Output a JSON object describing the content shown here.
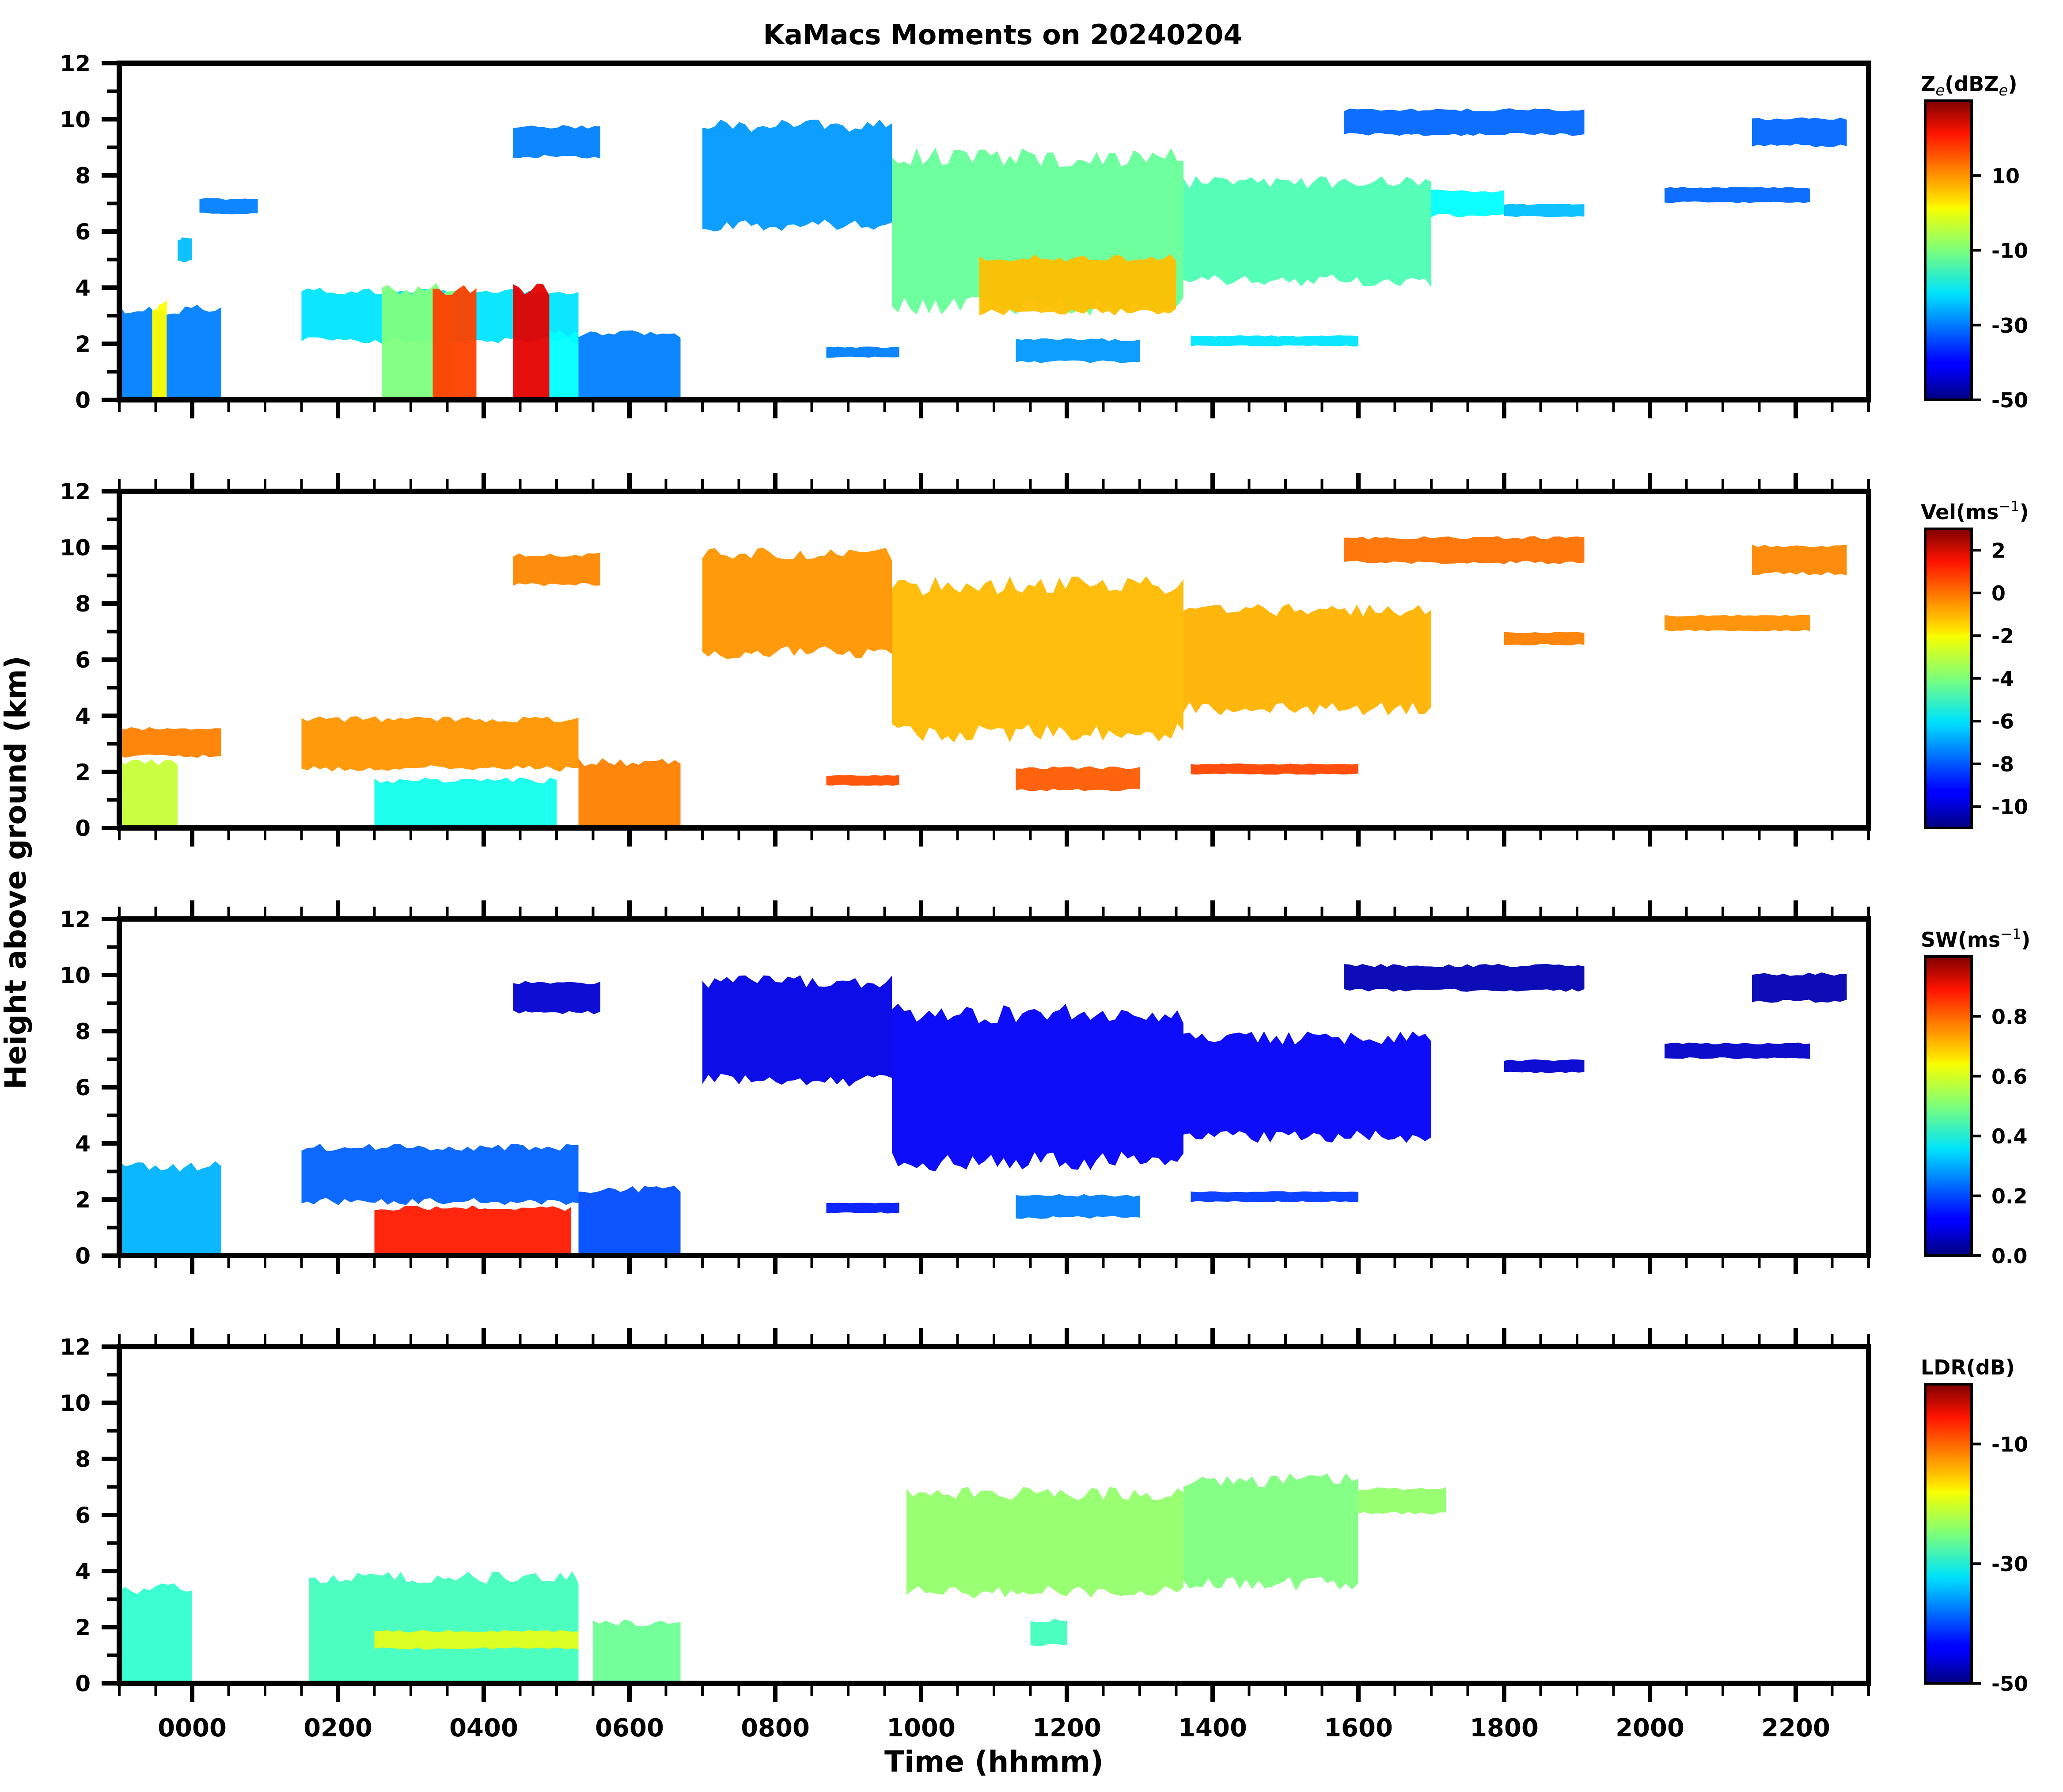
{
  "chart_data": {
    "type": "heatmap",
    "title": "KaMacs Moments on 20240204",
    "xlabel": "Time (hhmm)",
    "ylabel": "Height above ground (km)",
    "xlim": [
      -1,
      23
    ],
    "x_major_ticks": [
      0,
      2,
      4,
      6,
      8,
      10,
      12,
      14,
      16,
      18,
      20,
      22
    ],
    "x_tick_labels": [
      "0000",
      "0200",
      "0400",
      "0600",
      "0800",
      "1000",
      "1200",
      "1400",
      "1600",
      "1800",
      "2000",
      "2200"
    ],
    "x_minor_step_hours": 0.5,
    "ylim": [
      0,
      12
    ],
    "y_major_ticks": [
      0,
      2,
      4,
      6,
      8,
      10,
      12
    ],
    "y_tick_labels": [
      "0",
      "2",
      "4",
      "6",
      "8",
      "10",
      "12"
    ],
    "grid": false,
    "colormap": "jet",
    "panels": [
      {
        "name": "reflectivity",
        "colorbar_label": "Ze(dBZe)",
        "colorbar_label_main": "Z",
        "colorbar_label_sub": "e",
        "colorbar_label_mid": "(dBZ",
        "colorbar_label_sub2": "e",
        "colorbar_label_end": ")",
        "vmin": -50,
        "vmax": 30,
        "cb_ticks": [
          10,
          -10,
          -30,
          -50
        ],
        "cb_tick_labels": [
          "10",
          "-10",
          "-30",
          "-50"
        ],
        "regions": [
          {
            "t0": -1.0,
            "t1": 0.4,
            "z0": 0.0,
            "z1": 3.4,
            "value": -30
          },
          {
            "t0": -0.55,
            "t1": -0.35,
            "z0": 0.0,
            "z1": 3.6,
            "value": 0
          },
          {
            "t0": -0.2,
            "t1": 0.0,
            "z0": 4.9,
            "z1": 5.8,
            "value": -25
          },
          {
            "t0": 0.1,
            "t1": 0.9,
            "z0": 6.6,
            "z1": 7.2,
            "value": -30
          },
          {
            "t0": 1.5,
            "t1": 5.3,
            "z0": 2.0,
            "z1": 4.0,
            "value": -22
          },
          {
            "t0": 2.6,
            "t1": 3.6,
            "z0": 0.0,
            "z1": 4.2,
            "value": -10
          },
          {
            "t0": 3.3,
            "t1": 3.9,
            "z0": 0.0,
            "z1": 4.1,
            "value": 15
          },
          {
            "t0": 4.4,
            "t1": 4.9,
            "z0": 0.0,
            "z1": 4.2,
            "value": 22
          },
          {
            "t0": 4.9,
            "t1": 5.3,
            "z0": 0.0,
            "z1": 2.5,
            "value": -20
          },
          {
            "t0": 5.3,
            "t1": 6.7,
            "z0": 0.0,
            "z1": 2.5,
            "value": -30
          },
          {
            "t0": 4.4,
            "t1": 5.6,
            "z0": 8.6,
            "z1": 9.8,
            "value": -30
          },
          {
            "t0": 7.0,
            "t1": 9.6,
            "z0": 6.0,
            "z1": 10.0,
            "value": -28
          },
          {
            "t0": 9.6,
            "t1": 13.6,
            "z0": 3.0,
            "z1": 9.0,
            "value": -12
          },
          {
            "t0": 10.8,
            "t1": 13.5,
            "z0": 3.0,
            "z1": 5.2,
            "value": 5
          },
          {
            "t0": 13.6,
            "t1": 17.0,
            "z0": 4.0,
            "z1": 8.0,
            "value": -14
          },
          {
            "t0": 17.0,
            "t1": 18.0,
            "z0": 6.5,
            "z1": 7.5,
            "value": -20
          },
          {
            "t0": 15.8,
            "t1": 19.1,
            "z0": 9.4,
            "z1": 10.4,
            "value": -32
          },
          {
            "t0": 18.0,
            "t1": 19.1,
            "z0": 6.5,
            "z1": 7.0,
            "value": -25
          },
          {
            "t0": 20.2,
            "t1": 22.2,
            "z0": 7.0,
            "z1": 7.6,
            "value": -32
          },
          {
            "t0": 21.4,
            "t1": 22.7,
            "z0": 9.0,
            "z1": 10.1,
            "value": -32
          },
          {
            "t0": 8.7,
            "t1": 9.7,
            "z0": 1.5,
            "z1": 1.9,
            "value": -30
          },
          {
            "t0": 11.3,
            "t1": 13.0,
            "z0": 1.3,
            "z1": 2.2,
            "value": -28
          },
          {
            "t0": 13.7,
            "t1": 16.0,
            "z0": 1.9,
            "z1": 2.3,
            "value": -22
          }
        ]
      },
      {
        "name": "velocity",
        "colorbar_label": "Vel(ms^-1)",
        "colorbar_label_main": "Vel(ms",
        "colorbar_label_sup": "−1",
        "colorbar_label_end": ")",
        "vmin": -11,
        "vmax": 3,
        "cb_ticks": [
          2,
          0,
          -2,
          -4,
          -6,
          -8,
          -10
        ],
        "cb_tick_labels": [
          "2",
          "0",
          "-2",
          "-4",
          "-6",
          "-8",
          "-10"
        ],
        "regions": [
          {
            "t0": -1.0,
            "t1": 0.4,
            "z0": 2.5,
            "z1": 3.6,
            "value": -0.5
          },
          {
            "t0": -1.0,
            "t1": -0.2,
            "z0": 0.0,
            "z1": 2.5,
            "value": -3
          },
          {
            "t0": 1.5,
            "t1": 5.3,
            "z0": 2.0,
            "z1": 4.0,
            "value": -0.8
          },
          {
            "t0": 2.5,
            "t1": 5.0,
            "z0": 0.0,
            "z1": 1.8,
            "value": -5.5
          },
          {
            "t0": 5.3,
            "t1": 6.7,
            "z0": 0.0,
            "z1": 2.5,
            "value": -0.5
          },
          {
            "t0": 4.4,
            "t1": 5.6,
            "z0": 8.6,
            "z1": 9.8,
            "value": -0.6
          },
          {
            "t0": 7.0,
            "t1": 9.6,
            "z0": 6.0,
            "z1": 10.0,
            "value": -0.8
          },
          {
            "t0": 9.6,
            "t1": 13.6,
            "z0": 3.0,
            "z1": 9.0,
            "value": -1.3
          },
          {
            "t0": 13.6,
            "t1": 17.0,
            "z0": 4.0,
            "z1": 8.0,
            "value": -1.2
          },
          {
            "t0": 15.8,
            "t1": 19.1,
            "z0": 9.4,
            "z1": 10.4,
            "value": -0.3
          },
          {
            "t0": 18.0,
            "t1": 19.1,
            "z0": 6.5,
            "z1": 7.0,
            "value": -0.5
          },
          {
            "t0": 20.2,
            "t1": 22.2,
            "z0": 7.0,
            "z1": 7.6,
            "value": -0.7
          },
          {
            "t0": 21.4,
            "t1": 22.7,
            "z0": 9.0,
            "z1": 10.1,
            "value": -0.6
          },
          {
            "t0": 8.7,
            "t1": 9.7,
            "z0": 1.5,
            "z1": 1.9,
            "value": 0.2
          },
          {
            "t0": 11.3,
            "t1": 13.0,
            "z0": 1.3,
            "z1": 2.2,
            "value": 0.0
          },
          {
            "t0": 13.7,
            "t1": 16.0,
            "z0": 1.9,
            "z1": 2.3,
            "value": 0.3
          }
        ]
      },
      {
        "name": "spectrum_width",
        "colorbar_label": "SW(ms^-1)",
        "colorbar_label_main": "SW(ms",
        "colorbar_label_sup": "−1",
        "colorbar_label_end": ")",
        "vmin": 0.0,
        "vmax": 1.0,
        "cb_ticks": [
          0.8,
          0.6,
          0.4,
          0.2,
          0.0
        ],
        "cb_tick_labels": [
          "0.8",
          "0.6",
          "0.4",
          "0.2",
          "0.0"
        ],
        "regions": [
          {
            "t0": -1.0,
            "t1": 0.4,
            "z0": 0.0,
            "z1": 3.4,
            "value": 0.3
          },
          {
            "t0": 1.5,
            "t1": 5.3,
            "z0": 1.8,
            "z1": 4.0,
            "value": 0.22
          },
          {
            "t0": 2.5,
            "t1": 5.2,
            "z0": 0.0,
            "z1": 1.8,
            "value": 0.85
          },
          {
            "t0": 5.3,
            "t1": 6.7,
            "z0": 0.0,
            "z1": 2.5,
            "value": 0.2
          },
          {
            "t0": 4.4,
            "t1": 5.6,
            "z0": 8.6,
            "z1": 9.8,
            "value": 0.08
          },
          {
            "t0": 7.0,
            "t1": 9.6,
            "z0": 6.0,
            "z1": 10.0,
            "value": 0.1
          },
          {
            "t0": 9.6,
            "t1": 13.6,
            "z0": 3.0,
            "z1": 9.0,
            "value": 0.12
          },
          {
            "t0": 13.6,
            "t1": 17.0,
            "z0": 4.0,
            "z1": 8.0,
            "value": 0.12
          },
          {
            "t0": 15.8,
            "t1": 19.1,
            "z0": 9.4,
            "z1": 10.4,
            "value": 0.05
          },
          {
            "t0": 18.0,
            "t1": 19.1,
            "z0": 6.5,
            "z1": 7.0,
            "value": 0.08
          },
          {
            "t0": 20.2,
            "t1": 22.2,
            "z0": 7.0,
            "z1": 7.6,
            "value": 0.07
          },
          {
            "t0": 21.4,
            "t1": 22.7,
            "z0": 9.0,
            "z1": 10.1,
            "value": 0.05
          },
          {
            "t0": 8.7,
            "t1": 9.7,
            "z0": 1.5,
            "z1": 1.9,
            "value": 0.15
          },
          {
            "t0": 11.3,
            "t1": 13.0,
            "z0": 1.3,
            "z1": 2.2,
            "value": 0.25
          },
          {
            "t0": 13.7,
            "t1": 16.0,
            "z0": 1.9,
            "z1": 2.3,
            "value": 0.18
          }
        ]
      },
      {
        "name": "ldr",
        "colorbar_label": "LDR(dB)",
        "colorbar_label_main": "LDR(dB)",
        "vmin": -50,
        "vmax": 0,
        "cb_ticks": [
          -10,
          -30,
          -50
        ],
        "cb_tick_labels": [
          "-10",
          "-30",
          "-50"
        ],
        "regions": [
          {
            "t0": -1.0,
            "t1": 0.0,
            "z0": 0.0,
            "z1": 3.6,
            "value": -29
          },
          {
            "t0": 1.6,
            "t1": 5.3,
            "z0": 0.0,
            "z1": 4.0,
            "value": -28
          },
          {
            "t0": 2.5,
            "t1": 5.3,
            "z0": 1.2,
            "z1": 1.9,
            "value": -20
          },
          {
            "t0": 5.5,
            "t1": 6.7,
            "z0": 0.0,
            "z1": 2.3,
            "value": -26
          },
          {
            "t0": 9.8,
            "t1": 13.6,
            "z0": 3.0,
            "z1": 7.0,
            "value": -24
          },
          {
            "t0": 13.6,
            "t1": 16.0,
            "z0": 3.3,
            "z1": 7.5,
            "value": -25
          },
          {
            "t0": 16.0,
            "t1": 17.2,
            "z0": 6.0,
            "z1": 7.0,
            "value": -24
          },
          {
            "t0": 11.5,
            "t1": 12.0,
            "z0": 1.3,
            "z1": 2.3,
            "value": -28
          }
        ]
      }
    ]
  }
}
